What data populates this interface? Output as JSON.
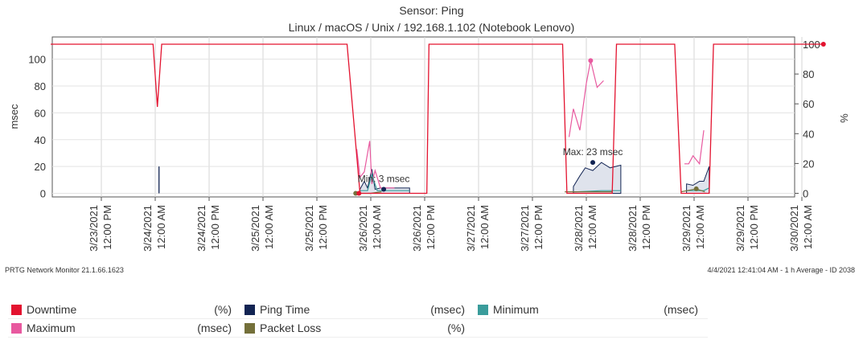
{
  "chart_data": {
    "type": "line",
    "title": "Sensor: Ping",
    "subtitle": "Linux / macOS / Unix / 192.168.1.102 (Notebook Lenovo)",
    "ylabel_left": "msec",
    "ylabel_right": "%",
    "ylim_left": [
      0,
      110
    ],
    "ylim_right": [
      0,
      100
    ],
    "yticks_left": [
      "0",
      "20",
      "40",
      "60",
      "80",
      "100"
    ],
    "yticks_right": [
      "0",
      "20",
      "40",
      "60",
      "80",
      "100"
    ],
    "xlim": [
      0,
      7.6
    ],
    "x_ticks": [
      {
        "x": 0.0,
        "line1": "3/23/2021",
        "line2": "12:00 PM"
      },
      {
        "x": 0.5,
        "line1": "3/24/2021",
        "line2": "12:00 AM"
      },
      {
        "x": 1.0,
        "line1": "3/24/2021",
        "line2": "12:00 PM"
      },
      {
        "x": 1.5,
        "line1": "3/25/2021",
        "line2": "12:00 AM"
      },
      {
        "x": 2.0,
        "line1": "3/25/2021",
        "line2": "12:00 PM"
      },
      {
        "x": 2.5,
        "line1": "3/26/2021",
        "line2": "12:00 AM"
      },
      {
        "x": 3.0,
        "line1": "3/26/2021",
        "line2": "12:00 PM"
      },
      {
        "x": 3.5,
        "line1": "3/27/2021",
        "line2": "12:00 AM"
      },
      {
        "x": 4.0,
        "line1": "3/27/2021",
        "line2": "12:00 PM"
      },
      {
        "x": 4.5,
        "line1": "3/28/2021",
        "line2": "12:00 AM"
      },
      {
        "x": 5.0,
        "line1": "3/28/2021",
        "line2": "12:00 PM"
      },
      {
        "x": 5.5,
        "line1": "3/29/2021",
        "line2": "12:00 AM"
      },
      {
        "x": 6.0,
        "line1": "3/29/2021",
        "line2": "12:00 PM"
      },
      {
        "x": 6.5,
        "line1": "3/30/2021",
        "line2": "12:00 AM"
      }
    ],
    "series": [
      {
        "name": "Downtime",
        "unit": "(%)",
        "axis": "right",
        "color": "#e3132f",
        "points": [
          [
            -0.47,
            100
          ],
          [
            0.48,
            100
          ],
          [
            0.52,
            58
          ],
          [
            0.56,
            100
          ],
          [
            2.28,
            100
          ],
          [
            2.4,
            0
          ],
          [
            3.02,
            0
          ],
          [
            3.04,
            100
          ],
          [
            4.28,
            100
          ],
          [
            4.32,
            0
          ],
          [
            4.74,
            0
          ],
          [
            4.78,
            100
          ],
          [
            5.32,
            100
          ],
          [
            5.38,
            0
          ],
          [
            5.64,
            0
          ],
          [
            5.68,
            100
          ],
          [
            6.7,
            100
          ]
        ]
      },
      {
        "name": "Ping Time",
        "unit": "(msec)",
        "axis": "left",
        "color": "#122453",
        "points": [
          [
            2.4,
            3
          ],
          [
            2.44,
            9
          ],
          [
            2.47,
            4
          ],
          [
            2.51,
            18
          ],
          [
            2.54,
            3
          ],
          [
            2.59,
            4
          ],
          [
            2.72,
            4
          ],
          [
            2.86,
            4
          ],
          [
            4.38,
            5
          ],
          [
            4.44,
            13
          ],
          [
            4.49,
            19
          ],
          [
            4.56,
            17
          ],
          [
            4.64,
            23
          ],
          [
            4.72,
            19
          ],
          [
            4.82,
            21
          ],
          [
            5.43,
            7
          ],
          [
            5.49,
            6
          ],
          [
            5.55,
            9
          ],
          [
            5.59,
            9
          ],
          [
            5.64,
            20
          ]
        ]
      },
      {
        "name": "Minimum",
        "unit": "(msec)",
        "axis": "left",
        "color": "#3a9c9b",
        "points": [
          [
            2.4,
            2
          ],
          [
            2.47,
            2
          ],
          [
            2.51,
            14
          ],
          [
            2.56,
            2
          ],
          [
            2.72,
            2
          ],
          [
            2.86,
            2
          ],
          [
            4.38,
            1
          ],
          [
            4.64,
            2
          ],
          [
            4.82,
            2
          ],
          [
            5.43,
            2
          ],
          [
            5.59,
            2
          ],
          [
            5.64,
            4
          ]
        ]
      },
      {
        "name": "Maximum",
        "unit": "(msec)",
        "axis": "left",
        "color": "#e8599f",
        "points": [
          [
            2.37,
            33
          ],
          [
            2.4,
            12
          ],
          [
            2.44,
            16
          ],
          [
            2.49,
            39
          ],
          [
            2.51,
            7
          ],
          [
            2.54,
            17
          ],
          [
            2.59,
            4
          ],
          [
            2.72,
            4
          ],
          [
            4.34,
            42
          ],
          [
            4.38,
            63
          ],
          [
            4.44,
            47
          ],
          [
            4.5,
            82
          ],
          [
            4.54,
            99
          ],
          [
            4.6,
            79
          ],
          [
            4.66,
            84
          ],
          [
            5.41,
            22
          ],
          [
            5.45,
            22
          ],
          [
            5.49,
            28
          ],
          [
            5.55,
            22
          ],
          [
            5.59,
            47
          ]
        ]
      },
      {
        "name": "Packet Loss",
        "unit": "(%)",
        "axis": "right",
        "color": "#74703a",
        "points": [
          [
            2.38,
            0
          ],
          [
            2.5,
            0
          ],
          [
            2.6,
            1
          ],
          [
            4.3,
            1
          ],
          [
            4.74,
            1
          ],
          [
            5.38,
            1
          ],
          [
            5.52,
            3
          ],
          [
            5.6,
            1
          ]
        ]
      }
    ],
    "min_max_markers": [
      {
        "label": "Min: 3 msec",
        "x": 2.62,
        "y": 3,
        "color": "#122453"
      },
      {
        "label": "Max: 23 msec",
        "x": 4.56,
        "y": 23,
        "color": "#122453"
      }
    ],
    "extra_markers": [
      {
        "x": 4.54,
        "y": 99,
        "axis": "left",
        "color": "#e8599f"
      },
      {
        "x": 6.7,
        "y": 100,
        "axis": "right",
        "color": "#e3132f"
      },
      {
        "x": 2.36,
        "y": 0,
        "axis": "right",
        "color": "#74703a"
      },
      {
        "x": 2.39,
        "y": 0,
        "axis": "right",
        "color": "#e3132f"
      },
      {
        "x": 5.52,
        "y": 3,
        "axis": "right",
        "color": "#74703a"
      }
    ],
    "grid": true
  },
  "footer": {
    "left": "PRTG Network Monitor 21.1.66.1623",
    "right": "4/4/2021 12:41:04 AM - 1 h Average - ID 2038"
  },
  "legend": [
    {
      "name": "Downtime",
      "unit": "(%)",
      "color": "#e3132f"
    },
    {
      "name": "Ping Time",
      "unit": "(msec)",
      "color": "#122453"
    },
    {
      "name": "Minimum",
      "unit": "(msec)",
      "color": "#3a9c9b"
    },
    {
      "name": "Maximum",
      "unit": "(msec)",
      "color": "#e8599f"
    },
    {
      "name": "Packet Loss",
      "unit": "(%)",
      "color": "#74703a"
    }
  ]
}
